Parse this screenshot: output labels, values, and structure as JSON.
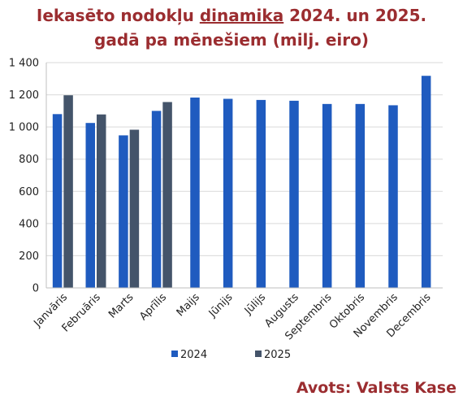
{
  "chart_data": {
    "type": "bar",
    "title_line1_prefix": "Iekasēto nodokļu ",
    "title_line1_underlined": "dinamika",
    "title_line1_suffix": " 2024. un 2025.",
    "title_line2": "gadā pa mēnešiem (milj. eiro)",
    "categories": [
      "Janvāris",
      "Februāris",
      "Marts",
      "Aprīlis",
      "Maijs",
      "Jūnijs",
      "Jūlijs",
      "Augusts",
      "Septembris",
      "Oktobris",
      "Novembris",
      "Decembris"
    ],
    "series": [
      {
        "name": "2024",
        "color": "#1f5bbf",
        "values": [
          1080,
          1025,
          948,
          1100,
          1183,
          1175,
          1168,
          1163,
          1143,
          1143,
          1135,
          1318
        ]
      },
      {
        "name": "2025",
        "color": "#44546a",
        "values": [
          1197,
          1078,
          983,
          1155,
          null,
          null,
          null,
          null,
          null,
          null,
          null,
          null
        ]
      }
    ],
    "ylim": [
      0,
      1400
    ],
    "yticks": [
      0,
      200,
      400,
      600,
      800,
      1000,
      1200,
      1400
    ],
    "ytick_labels": [
      "0",
      "200",
      "400",
      "600",
      "800",
      "1 000",
      "1 200",
      "1 400"
    ],
    "grid": true,
    "legend_position": "bottom"
  },
  "source": "Avots: Valsts Kase"
}
